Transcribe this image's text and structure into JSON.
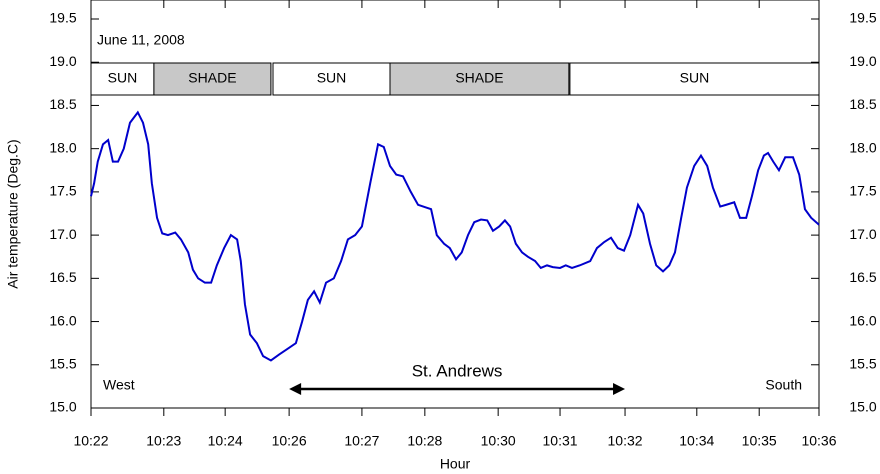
{
  "chart_data": {
    "type": "line",
    "y_label": "Air temperature (Deg.C)",
    "x_label": "Hour",
    "annotations": {
      "date": "June 11, 2008",
      "left": "West",
      "right": "South",
      "route": {
        "label": "St. Andrews",
        "start": 3.81,
        "end": 10.27
      }
    },
    "bands": [
      {
        "label": "SUN",
        "start": 0,
        "end": 1.21,
        "shaded": false
      },
      {
        "label": "SHADE",
        "start": 1.21,
        "end": 3.46,
        "shaded": true
      },
      {
        "label": "SUN",
        "start": 3.5,
        "end": 5.75,
        "shaded": false
      },
      {
        "label": "SHADE",
        "start": 5.75,
        "end": 9.19,
        "shaded": true
      },
      {
        "label": "SUN",
        "start": 9.21,
        "end": 14,
        "shaded": false
      }
    ],
    "xlim": [
      0,
      14
    ],
    "xticks": [
      {
        "value": 0,
        "label": "10:22"
      },
      {
        "value": 1.4,
        "label": "10:23"
      },
      {
        "value": 2.58,
        "label": "10:24"
      },
      {
        "value": 3.81,
        "label": "10:26"
      },
      {
        "value": 5.21,
        "label": "10:27"
      },
      {
        "value": 6.42,
        "label": "10:28"
      },
      {
        "value": 7.83,
        "label": "10:30"
      },
      {
        "value": 9.02,
        "label": "10:31"
      },
      {
        "value": 10.27,
        "label": "10:32"
      },
      {
        "value": 11.65,
        "label": "10:34"
      },
      {
        "value": 12.85,
        "label": "10:35"
      },
      {
        "value": 14,
        "label": "10:36"
      }
    ],
    "ylim": [
      15,
      19.5
    ],
    "yticks": [
      {
        "value": 15,
        "label": "15.0"
      },
      15.5,
      {
        "value": 16,
        "label": "16.0"
      },
      16.5,
      {
        "value": 17,
        "label": "17.0"
      },
      17.5,
      {
        "value": 18,
        "label": "18.0"
      },
      18.5,
      {
        "value": 19,
        "label": "19.0"
      },
      19.5
    ],
    "right_axis": true,
    "series": [
      {
        "color": "#0000cc",
        "x": [
          0,
          0.06,
          0.13,
          0.23,
          0.33,
          0.42,
          0.52,
          0.63,
          0.75,
          0.9,
          1.0,
          1.1,
          1.17,
          1.27,
          1.37,
          1.48,
          1.62,
          1.73,
          1.87,
          1.96,
          2.06,
          2.19,
          2.31,
          2.42,
          2.56,
          2.69,
          2.81,
          2.88,
          2.96,
          3.06,
          3.19,
          3.31,
          3.46,
          3.62,
          3.77,
          3.94,
          4.06,
          4.17,
          4.29,
          4.4,
          4.52,
          4.67,
          4.81,
          4.94,
          5.08,
          5.21,
          5.37,
          5.52,
          5.63,
          5.75,
          5.87,
          6.0,
          6.15,
          6.29,
          6.44,
          6.54,
          6.65,
          6.79,
          6.9,
          7.02,
          7.13,
          7.25,
          7.37,
          7.5,
          7.62,
          7.73,
          7.85,
          7.96,
          8.06,
          8.17,
          8.29,
          8.4,
          8.54,
          8.65,
          8.77,
          8.88,
          9.02,
          9.13,
          9.25,
          9.4,
          9.6,
          9.73,
          9.87,
          10.0,
          10.13,
          10.25,
          10.37,
          10.52,
          10.62,
          10.75,
          10.87,
          11.0,
          11.12,
          11.23,
          11.35,
          11.46,
          11.6,
          11.73,
          11.85,
          11.96,
          12.1,
          12.21,
          12.37,
          12.48,
          12.6,
          12.71,
          12.83,
          12.94,
          13.02,
          13.12,
          13.23,
          13.35,
          13.5,
          13.62,
          13.73,
          13.85,
          14.0
        ],
        "values": [
          17.45,
          17.6,
          17.85,
          18.05,
          18.1,
          17.85,
          17.85,
          18.0,
          18.3,
          18.42,
          18.3,
          18.05,
          17.6,
          17.2,
          17.02,
          17.0,
          17.03,
          16.95,
          16.8,
          16.6,
          16.5,
          16.45,
          16.45,
          16.65,
          16.85,
          17.0,
          16.95,
          16.7,
          16.2,
          15.85,
          15.75,
          15.6,
          15.55,
          15.62,
          15.68,
          15.75,
          16.0,
          16.25,
          16.35,
          16.22,
          16.45,
          16.5,
          16.7,
          16.95,
          17.0,
          17.1,
          17.6,
          18.05,
          18.02,
          17.8,
          17.7,
          17.68,
          17.5,
          17.35,
          17.32,
          17.3,
          17.0,
          16.9,
          16.85,
          16.72,
          16.8,
          17.0,
          17.15,
          17.18,
          17.17,
          17.05,
          17.1,
          17.17,
          17.1,
          16.9,
          16.8,
          16.75,
          16.7,
          16.62,
          16.65,
          16.63,
          16.62,
          16.65,
          16.62,
          16.65,
          16.7,
          16.85,
          16.92,
          16.97,
          16.85,
          16.82,
          17.0,
          17.35,
          17.25,
          16.9,
          16.65,
          16.58,
          16.65,
          16.8,
          17.2,
          17.55,
          17.8,
          17.92,
          17.8,
          17.55,
          17.33,
          17.35,
          17.38,
          17.2,
          17.2,
          17.45,
          17.75,
          17.92,
          17.95,
          17.85,
          17.75,
          17.9,
          17.9,
          17.7,
          17.3,
          17.2,
          17.12
        ]
      }
    ]
  }
}
